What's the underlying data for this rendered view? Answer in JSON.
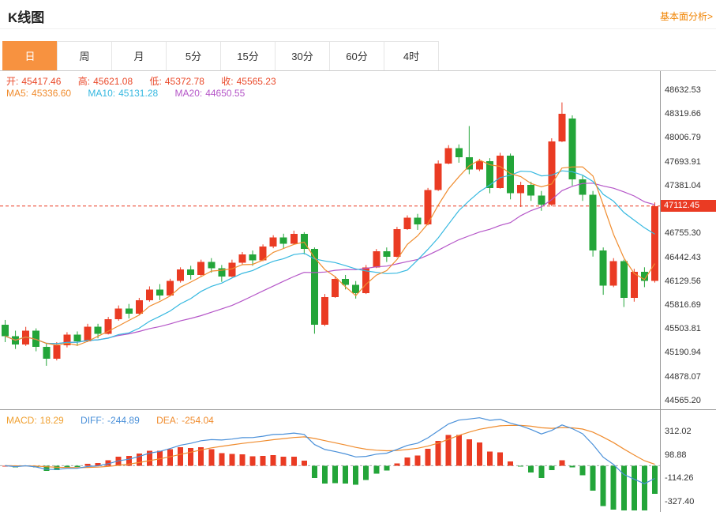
{
  "header": {
    "title": "K线图",
    "link": "基本面分析>"
  },
  "tabs": [
    {
      "label": "日",
      "active": true
    },
    {
      "label": "周",
      "active": false
    },
    {
      "label": "月",
      "active": false
    },
    {
      "label": "5分",
      "active": false
    },
    {
      "label": "15分",
      "active": false
    },
    {
      "label": "30分",
      "active": false
    },
    {
      "label": "60分",
      "active": false
    },
    {
      "label": "4时",
      "active": false
    }
  ],
  "info": {
    "open_label": "开:",
    "open": "45417.46",
    "high_label": "高:",
    "high": "45621.08",
    "low_label": "低:",
    "low": "45372.78",
    "close_label": "收:",
    "close": "45565.23",
    "ma5_label": "MA5:",
    "ma5": "45336.60",
    "ma10_label": "MA10:",
    "ma10": "45131.28",
    "ma20_label": "MA20:",
    "ma20": "44650.55"
  },
  "macd_info": {
    "macd_label": "MACD:",
    "macd": "18.29",
    "diff_label": "DIFF:",
    "diff": "-244.89",
    "dea_label": "DEA:",
    "dea": "-254.04"
  },
  "price_tag": "47112.45",
  "colors": {
    "up": "#ea3b23",
    "down": "#23a539",
    "ma5": "#f08c2e",
    "ma10": "#35b8e0",
    "ma20": "#b556c8",
    "diff": "#4a90d9",
    "dea": "#f08c2e",
    "accent": "#f08300",
    "tab_active": "#f79240",
    "tag_bg": "#ea3b23"
  },
  "chart_data": {
    "type": "candlestick",
    "title": "K线图 (日K)",
    "current_price": 47112.45,
    "price_domain": [
      44450,
      48880
    ],
    "macd_domain": [
      -420,
      504
    ],
    "y_axis_labels": [
      "48632.53",
      "48319.66",
      "48006.79",
      "47693.91",
      "47381.04",
      "46755.30",
      "46442.43",
      "46129.56",
      "45816.69",
      "45503.81",
      "45190.94",
      "44878.07",
      "44565.20"
    ],
    "macd_axis_labels": [
      "312.02",
      "98.88",
      "-114.26",
      "-327.40"
    ],
    "indicators": {
      "ma_periods": [
        5,
        10,
        20
      ],
      "macd_params": [
        12,
        26,
        9
      ]
    },
    "candles": [
      [
        45560,
        45620,
        45330,
        45410
      ],
      [
        45410,
        45480,
        45240,
        45300
      ],
      [
        45300,
        45530,
        45280,
        45480
      ],
      [
        45480,
        45510,
        45210,
        45270
      ],
      [
        45270,
        45310,
        45020,
        45110
      ],
      [
        45110,
        45330,
        45090,
        45290
      ],
      [
        45290,
        45460,
        45260,
        45430
      ],
      [
        45430,
        45470,
        45280,
        45340
      ],
      [
        45340,
        45570,
        45330,
        45530
      ],
      [
        45530,
        45570,
        45380,
        45440
      ],
      [
        45440,
        45660,
        45430,
        45630
      ],
      [
        45630,
        45810,
        45610,
        45770
      ],
      [
        45770,
        45830,
        45640,
        45700
      ],
      [
        45700,
        45910,
        45690,
        45880
      ],
      [
        45880,
        46060,
        45860,
        46020
      ],
      [
        46020,
        46090,
        45880,
        45940
      ],
      [
        45940,
        46160,
        45930,
        46130
      ],
      [
        46130,
        46310,
        46110,
        46280
      ],
      [
        46280,
        46330,
        46150,
        46210
      ],
      [
        46210,
        46410,
        46190,
        46380
      ],
      [
        46380,
        46430,
        46240,
        46300
      ],
      [
        46300,
        46340,
        46120,
        46190
      ],
      [
        46190,
        46410,
        46180,
        46370
      ],
      [
        46370,
        46510,
        46350,
        46480
      ],
      [
        46480,
        46530,
        46330,
        46400
      ],
      [
        46400,
        46610,
        46390,
        46580
      ],
      [
        46580,
        46730,
        46560,
        46700
      ],
      [
        46700,
        46750,
        46560,
        46620
      ],
      [
        46620,
        46790,
        46610,
        46750
      ],
      [
        46750,
        46770,
        46480,
        46550
      ],
      [
        46550,
        46570,
        45440,
        45560
      ],
      [
        45560,
        45960,
        45540,
        45920
      ],
      [
        45920,
        46190,
        45910,
        46160
      ],
      [
        46160,
        46210,
        46020,
        46080
      ],
      [
        46080,
        46130,
        45900,
        45970
      ],
      [
        45970,
        46340,
        45960,
        46310
      ],
      [
        46310,
        46550,
        46300,
        46520
      ],
      [
        46520,
        46570,
        46380,
        46450
      ],
      [
        46450,
        46840,
        46440,
        46810
      ],
      [
        46810,
        46990,
        46800,
        46960
      ],
      [
        46960,
        47010,
        46800,
        46870
      ],
      [
        46870,
        47350,
        46860,
        47320
      ],
      [
        47320,
        47710,
        47310,
        47670
      ],
      [
        47670,
        47910,
        47660,
        47870
      ],
      [
        47870,
        47920,
        47680,
        47750
      ],
      [
        47750,
        48160,
        47530,
        47590
      ],
      [
        47590,
        47730,
        47570,
        47700
      ],
      [
        47700,
        47740,
        47280,
        47350
      ],
      [
        47350,
        47810,
        47340,
        47770
      ],
      [
        47770,
        47800,
        47200,
        47280
      ],
      [
        47280,
        47430,
        47100,
        47390
      ],
      [
        47390,
        47430,
        47180,
        47250
      ],
      [
        47250,
        47310,
        47050,
        47130
      ],
      [
        47130,
        48000,
        47110,
        47960
      ],
      [
        47960,
        48470,
        47950,
        48320
      ],
      [
        48260,
        48300,
        47380,
        47460
      ],
      [
        47460,
        47510,
        47180,
        47260
      ],
      [
        47260,
        47310,
        46450,
        46530
      ],
      [
        46530,
        46570,
        45950,
        46070
      ],
      [
        46070,
        46430,
        46050,
        46390
      ],
      [
        46390,
        46410,
        45790,
        45910
      ],
      [
        45910,
        46290,
        45860,
        46250
      ],
      [
        46250,
        46310,
        46050,
        46130
      ],
      [
        46130,
        47160,
        46110,
        47112.45
      ]
    ]
  }
}
